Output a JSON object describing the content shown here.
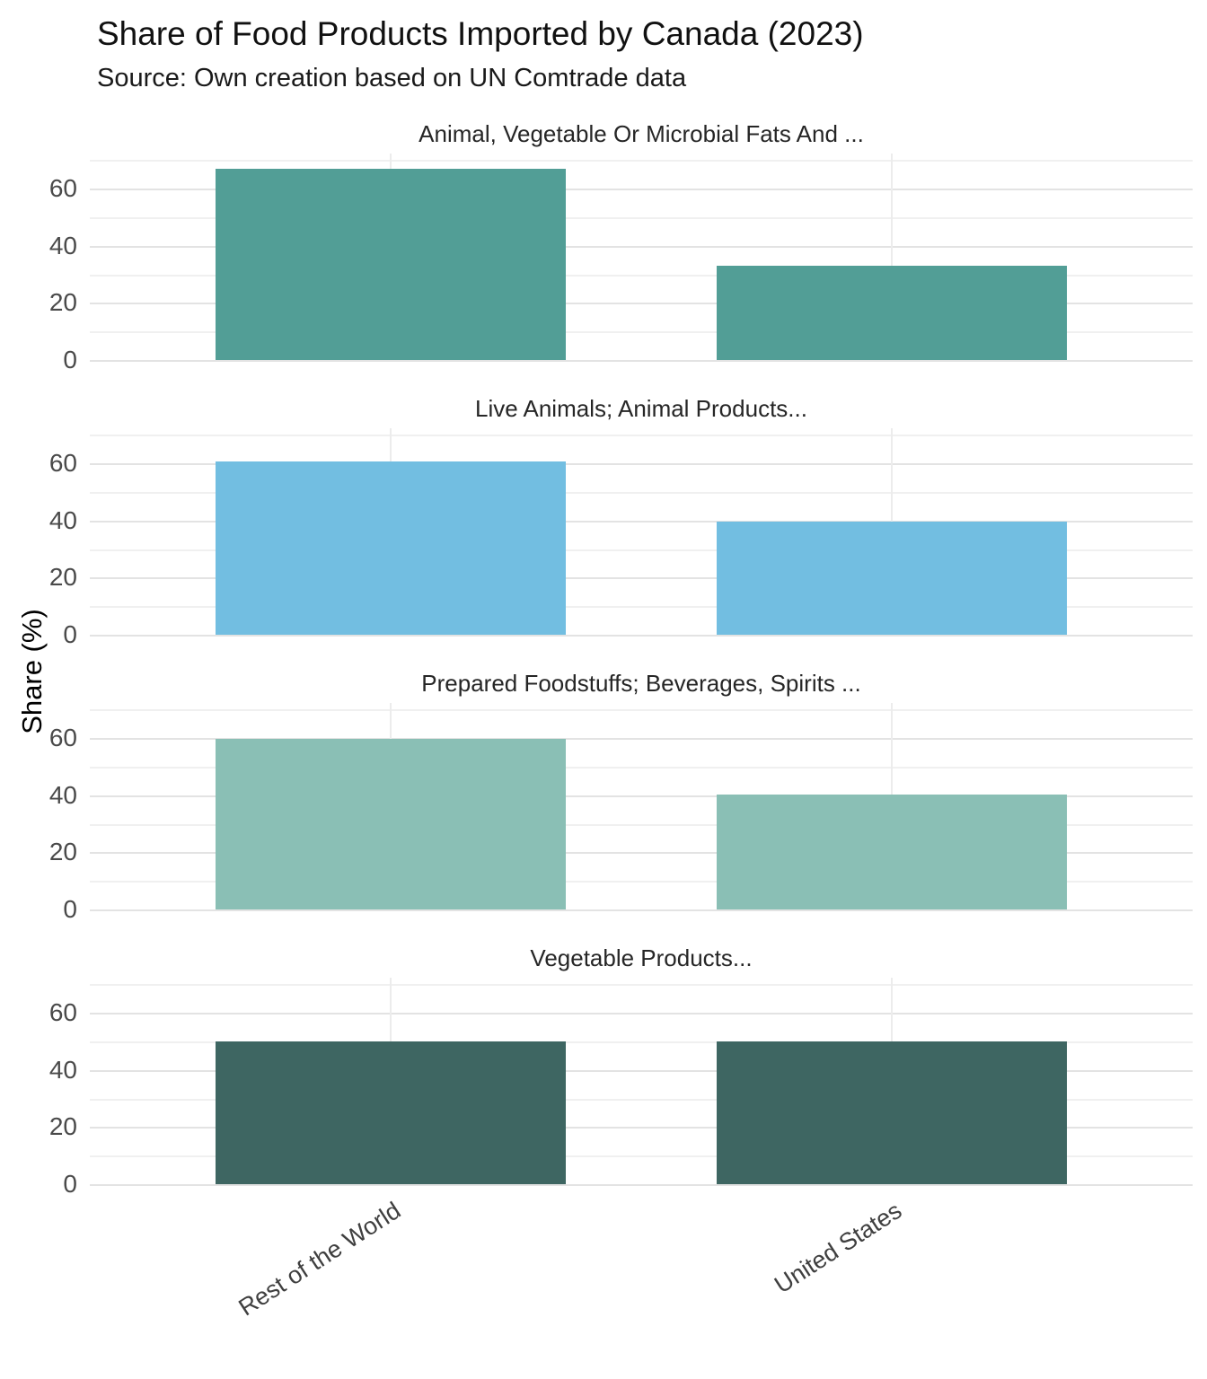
{
  "header": {
    "title": "Share of Food Products Imported by Canada (2023)",
    "subtitle": "Source: Own creation based on UN Comtrade data"
  },
  "chart_data": {
    "type": "bar",
    "layout": "faceted-columns",
    "categories": [
      "Rest of the World",
      "United States"
    ],
    "facets": [
      {
        "title": "Animal, Vegetable Or Microbial Fats And ...",
        "values": [
          66.9,
          33.1
        ],
        "color": "#529E96"
      },
      {
        "title": "Live Animals; Animal Products...",
        "values": [
          60.5,
          39.5
        ],
        "color": "#72BEE1"
      },
      {
        "title": "Prepared Foodstuffs; Beverages, Spirits ...",
        "values": [
          59.8,
          40.2
        ],
        "color": "#8ABFB5"
      },
      {
        "title": "Vegetable Products...",
        "values": [
          49.9,
          50.1
        ],
        "color": "#3E6662"
      }
    ],
    "title": "Share of Food Products Imported by Canada (2023)",
    "subtitle": "Source: Own creation based on UN Comtrade data",
    "xlabel": "",
    "ylabel": "Share (%)",
    "ylim": [
      0,
      72.2
    ],
    "yticks": [
      0,
      20,
      40,
      60
    ],
    "minor_yticks": [
      10,
      30,
      50,
      70
    ],
    "grid": true,
    "legend": false,
    "colors": {
      "grid_major": "#e3e3e3",
      "grid_minor": "#f0f0f0",
      "grid_vertical": "#ececec",
      "tick_text": "#4a4a4a",
      "facet_title_text": "#262626",
      "title_text": "#111111"
    }
  }
}
